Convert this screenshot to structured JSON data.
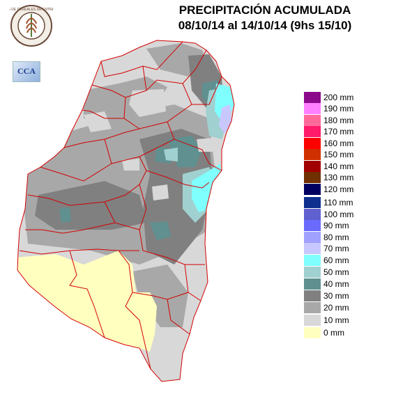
{
  "title": {
    "line1": "PRECIPITACIÓN ACUMULADA",
    "line2": "08/10/14 al 14/10/14 (9hs 15/10)"
  },
  "logos": {
    "bolsa": "BOLSA DE CEREALES DE ENTRE RIOS",
    "cca": "CCA"
  },
  "legend": [
    {
      "label": "200 mm",
      "color": "#8b0a8b"
    },
    {
      "label": "190 mm",
      "color": "#ff80ff"
    },
    {
      "label": "180 mm",
      "color": "#ff6a9a"
    },
    {
      "label": "170 mm",
      "color": "#ff1a6a"
    },
    {
      "label": "160 mm",
      "color": "#ff0000"
    },
    {
      "label": "150 mm",
      "color": "#d03000"
    },
    {
      "label": "140 mm",
      "color": "#a00000"
    },
    {
      "label": "130 mm",
      "color": "#703000"
    },
    {
      "label": "120 mm",
      "color": "#000060"
    },
    {
      "label": "110 mm",
      "color": "#103090"
    },
    {
      "label": "100 mm",
      "color": "#6060d0"
    },
    {
      "label": "90 mm",
      "color": "#6a6aff"
    },
    {
      "label": "80 mm",
      "color": "#a0a0ff"
    },
    {
      "label": "70 mm",
      "color": "#c8c8ff"
    },
    {
      "label": "60 mm",
      "color": "#80ffff"
    },
    {
      "label": "50 mm",
      "color": "#a0d0d0"
    },
    {
      "label": "40 mm",
      "color": "#609090"
    },
    {
      "label": "30 mm",
      "color": "#808080"
    },
    {
      "label": "20 mm",
      "color": "#a8a8a8"
    },
    {
      "label": "10 mm",
      "color": "#d8d8d8"
    },
    {
      "label": "0 mm",
      "color": "#ffffc0"
    }
  ]
}
